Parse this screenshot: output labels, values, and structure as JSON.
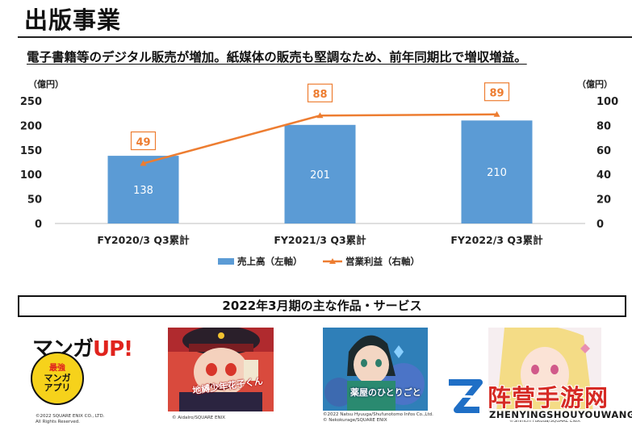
{
  "header": {
    "title": "出版事業",
    "subtitle": "電子書籍等のデジタル販売が増加。紙媒体の販売も堅調なため、前年同期比で増収増益。"
  },
  "colors": {
    "bar": "#5b9bd5",
    "line": "#ed7d31",
    "label_box_border": "#ed7d31",
    "label_box_text": "#ed7d31"
  },
  "chart_data": {
    "type": "bar+line",
    "categories": [
      "FY2020/3 Q3累計",
      "FY2021/3 Q3累計",
      "FY2022/3 Q3累計"
    ],
    "series": [
      {
        "name": "売上高（左軸）",
        "type": "bar",
        "axis": "left",
        "values": [
          138,
          201,
          210
        ]
      },
      {
        "name": "営業利益（右軸）",
        "type": "line",
        "axis": "right",
        "values": [
          49,
          88,
          89
        ]
      }
    ],
    "left_axis": {
      "unit": "（億円）",
      "ticks": [
        0,
        50,
        100,
        150,
        200,
        250
      ],
      "range": [
        0,
        250
      ]
    },
    "right_axis": {
      "unit": "（億円）",
      "ticks": [
        0,
        20,
        40,
        60,
        80,
        100
      ],
      "range": [
        0,
        100
      ]
    },
    "legend_position": "bottom",
    "grid": false
  },
  "section": {
    "title": "2022年3月期の主な作品・サービス"
  },
  "works": [
    {
      "icon": "manga-up-logo-icon",
      "logo_text": "マンガ",
      "logo_up": "UP!",
      "badge_lines": [
        "最強",
        "マンガ",
        "アプリ"
      ],
      "credit": "©2022 SQUARE ENIX CO., LTD.\nAll Rights Reserved."
    },
    {
      "icon": "jibaku-shounen-hanako-kun-cover-icon",
      "cover_title": "地縛少年花子くん",
      "credit": "© AidaIro/SQUARE ENIX"
    },
    {
      "icon": "kusuriya-no-hitorigoto-cover-icon",
      "cover_title": "薬屋のひとりごと",
      "credit": "©2022 Natsu Hyuuga/Shufunotomo Infos Co.,Ltd.\n© Nekokurage/SQUARE ENIX"
    },
    {
      "icon": "sono-bisque-doll-cover-icon",
      "credit": "©Shinichi Fukuda/SQUARE ENIX"
    }
  ],
  "watermark": {
    "cn": "阵营手游网",
    "en": "ZHENYINGSHOUYOUWANG"
  }
}
